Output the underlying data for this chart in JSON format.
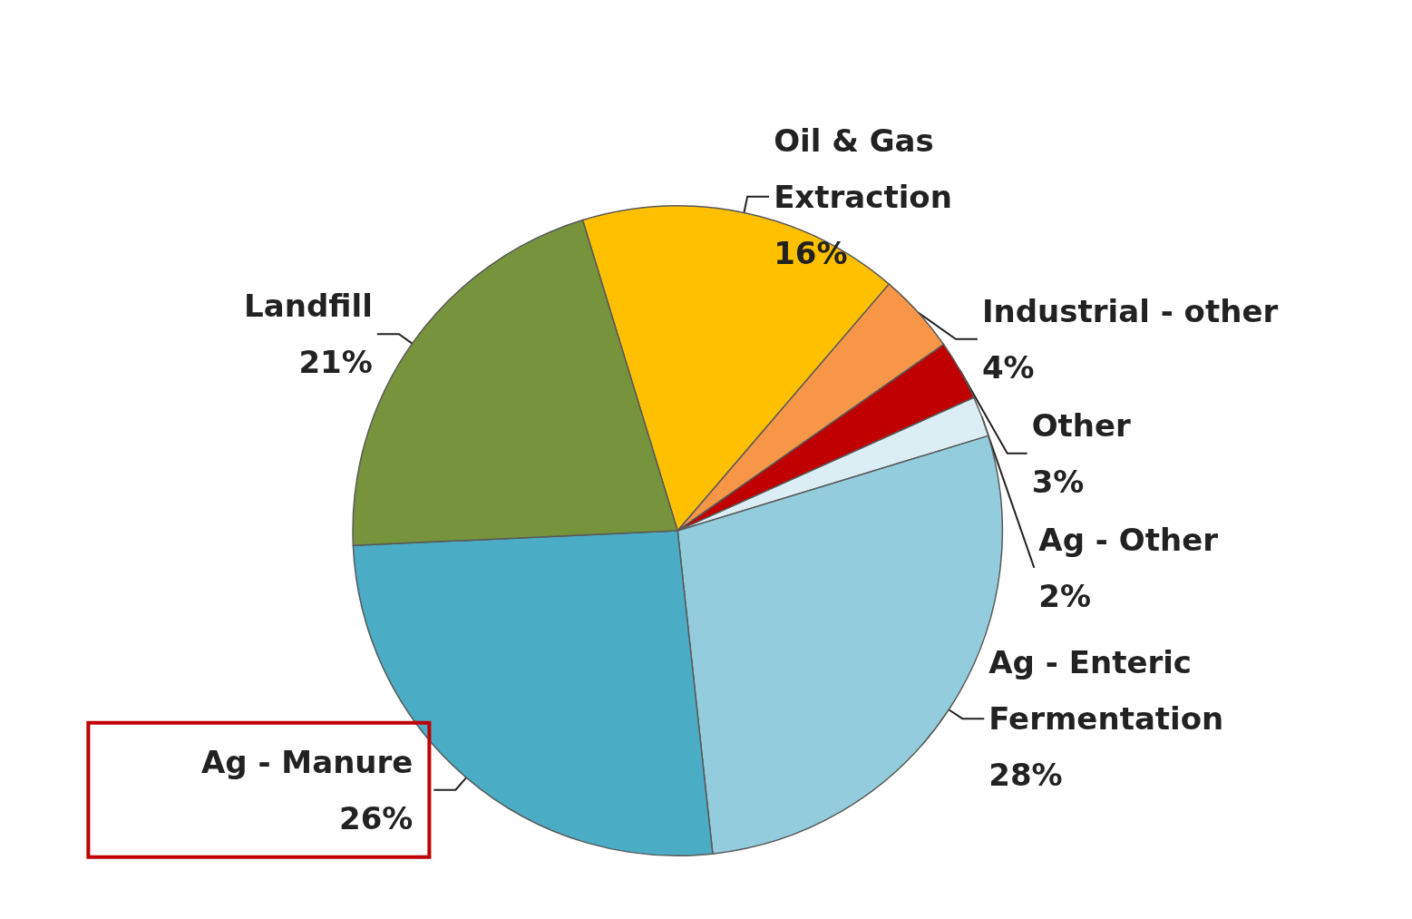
{
  "chart_data": {
    "type": "pie",
    "categories": [
      "Oil & Gas Extraction",
      "Industrial - other",
      "Other",
      "Ag - Other",
      "Ag - Enteric Fermentation",
      "Ag - Manure",
      "Landfill"
    ],
    "values": [
      16,
      4,
      3,
      2,
      28,
      26,
      21
    ],
    "value_labels": [
      "16%",
      "4%",
      "3%",
      "2%",
      "28%",
      "26%",
      "21%"
    ],
    "colors": [
      "#ffc000",
      "#f79646",
      "#c00000",
      "#dbeef4",
      "#93cddd",
      "#4bacc6",
      "#77933c"
    ],
    "legend": false
  }
}
